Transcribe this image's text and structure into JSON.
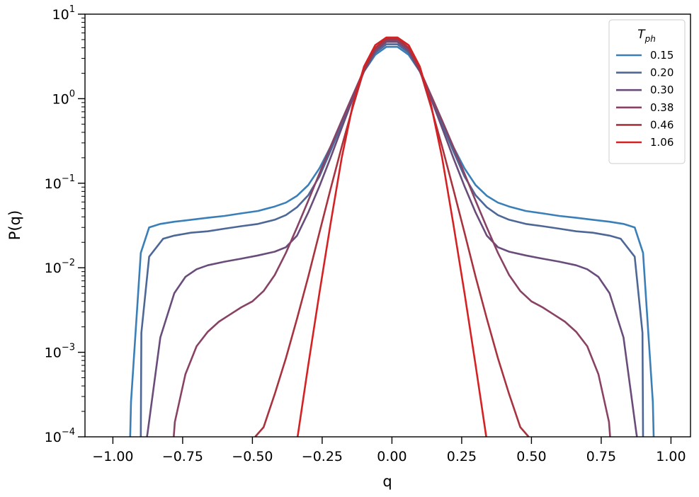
{
  "chart_data": {
    "type": "line",
    "xlabel": "q",
    "ylabel": "P(q)",
    "xlim": [
      -1.1,
      1.07
    ],
    "ylim": [
      0.0001,
      10
    ],
    "yscale": "log",
    "grid": false,
    "legend_position": "top-right",
    "legend_title_main": "T",
    "legend_title_sub": "ph",
    "x_ticks": [
      -1.0,
      -0.75,
      -0.5,
      -0.25,
      0.0,
      0.25,
      0.5,
      0.75,
      1.0
    ],
    "x_tick_labels": [
      "−1.00",
      "−0.75",
      "−0.50",
      "−0.25",
      "0.00",
      "0.25",
      "0.50",
      "0.75",
      "1.00"
    ],
    "y_ticks": [
      {
        "value": 10,
        "base": "10",
        "exp": "1"
      },
      {
        "value": 1,
        "base": "10",
        "exp": "0"
      },
      {
        "value": 0.1,
        "base": "10",
        "exp": "−1"
      },
      {
        "value": 0.01,
        "base": "10",
        "exp": "−2"
      },
      {
        "value": 0.001,
        "base": "10",
        "exp": "−3"
      },
      {
        "value": 0.0001,
        "base": "10",
        "exp": "−4"
      }
    ],
    "series": [
      {
        "name": "0.15",
        "color": "#3a7fb8",
        "x": [
          -0.938,
          -0.935,
          -0.9,
          -0.87,
          -0.83,
          -0.78,
          -0.72,
          -0.66,
          -0.6,
          -0.54,
          -0.48,
          -0.42,
          -0.38,
          -0.34,
          -0.3,
          -0.26,
          -0.22,
          -0.18,
          -0.14,
          -0.1,
          -0.06,
          -0.02,
          0.02,
          0.06,
          0.1,
          0.14,
          0.18,
          0.22,
          0.26,
          0.3,
          0.34,
          0.38,
          0.42,
          0.48,
          0.54,
          0.6,
          0.66,
          0.72,
          0.78,
          0.83,
          0.87,
          0.9,
          0.935,
          0.938
        ],
        "y": [
          0.0001,
          0.00026,
          0.015,
          0.03,
          0.033,
          0.035,
          0.037,
          0.039,
          0.041,
          0.044,
          0.047,
          0.053,
          0.059,
          0.071,
          0.095,
          0.15,
          0.27,
          0.55,
          1.1,
          2.1,
          3.3,
          4.1,
          4.1,
          3.3,
          2.1,
          1.1,
          0.55,
          0.27,
          0.15,
          0.095,
          0.071,
          0.059,
          0.053,
          0.047,
          0.044,
          0.041,
          0.039,
          0.037,
          0.035,
          0.033,
          0.03,
          0.015,
          0.00026,
          0.0001
        ]
      },
      {
        "name": "0.20",
        "color": "#4d6797",
        "x": [
          -0.9,
          -0.898,
          -0.87,
          -0.82,
          -0.78,
          -0.72,
          -0.66,
          -0.6,
          -0.54,
          -0.48,
          -0.42,
          -0.38,
          -0.34,
          -0.3,
          -0.26,
          -0.22,
          -0.18,
          -0.14,
          -0.1,
          -0.06,
          -0.02,
          0.02,
          0.06,
          0.1,
          0.14,
          0.18,
          0.22,
          0.26,
          0.3,
          0.34,
          0.38,
          0.42,
          0.48,
          0.54,
          0.6,
          0.66,
          0.72,
          0.78,
          0.82,
          0.87,
          0.898,
          0.9
        ],
        "y": [
          0.0001,
          0.0017,
          0.0135,
          0.022,
          0.024,
          0.026,
          0.027,
          0.029,
          0.031,
          0.033,
          0.037,
          0.042,
          0.052,
          0.072,
          0.12,
          0.24,
          0.5,
          1.05,
          2.1,
          3.5,
          4.4,
          4.4,
          3.5,
          2.1,
          1.05,
          0.5,
          0.24,
          0.12,
          0.072,
          0.052,
          0.042,
          0.037,
          0.033,
          0.031,
          0.029,
          0.027,
          0.026,
          0.024,
          0.022,
          0.0135,
          0.0017,
          0.0001
        ]
      },
      {
        "name": "0.30",
        "color": "#6a4c7b",
        "x": [
          -0.878,
          -0.876,
          -0.83,
          -0.78,
          -0.74,
          -0.7,
          -0.66,
          -0.6,
          -0.54,
          -0.48,
          -0.42,
          -0.38,
          -0.34,
          -0.3,
          -0.26,
          -0.22,
          -0.18,
          -0.14,
          -0.1,
          -0.06,
          -0.02,
          0.02,
          0.06,
          0.1,
          0.14,
          0.18,
          0.22,
          0.26,
          0.3,
          0.34,
          0.38,
          0.42,
          0.48,
          0.54,
          0.6,
          0.66,
          0.7,
          0.74,
          0.78,
          0.83,
          0.876,
          0.878
        ],
        "y": [
          0.0001,
          0.00011,
          0.0015,
          0.005,
          0.0078,
          0.0096,
          0.0107,
          0.0118,
          0.0128,
          0.014,
          0.0155,
          0.0175,
          0.024,
          0.045,
          0.092,
          0.2,
          0.45,
          1.0,
          2.1,
          3.7,
          4.7,
          4.7,
          3.7,
          2.1,
          1.0,
          0.45,
          0.2,
          0.092,
          0.045,
          0.024,
          0.0175,
          0.0155,
          0.014,
          0.0128,
          0.0118,
          0.0107,
          0.0096,
          0.0078,
          0.005,
          0.0015,
          0.00011,
          0.0001
        ]
      },
      {
        "name": "0.38",
        "color": "#894264",
        "x": [
          -0.782,
          -0.778,
          -0.74,
          -0.7,
          -0.66,
          -0.62,
          -0.58,
          -0.54,
          -0.5,
          -0.46,
          -0.42,
          -0.38,
          -0.34,
          -0.3,
          -0.26,
          -0.22,
          -0.18,
          -0.14,
          -0.1,
          -0.06,
          -0.02,
          0.02,
          0.06,
          0.1,
          0.14,
          0.18,
          0.22,
          0.26,
          0.3,
          0.34,
          0.38,
          0.42,
          0.46,
          0.5,
          0.54,
          0.58,
          0.62,
          0.66,
          0.7,
          0.74,
          0.778,
          0.782
        ],
        "y": [
          0.0001,
          0.00015,
          0.00055,
          0.00118,
          0.00175,
          0.0023,
          0.0028,
          0.0034,
          0.004,
          0.0053,
          0.0082,
          0.015,
          0.03,
          0.062,
          0.13,
          0.27,
          0.55,
          1.1,
          2.2,
          3.8,
          4.9,
          4.9,
          3.8,
          2.2,
          1.1,
          0.55,
          0.27,
          0.13,
          0.062,
          0.03,
          0.015,
          0.0082,
          0.0053,
          0.004,
          0.0034,
          0.0028,
          0.0023,
          0.00175,
          0.00118,
          0.00055,
          0.00015,
          0.0001
        ]
      },
      {
        "name": "0.46",
        "color": "#a8333f",
        "x": [
          -0.49,
          -0.46,
          -0.42,
          -0.38,
          -0.34,
          -0.3,
          -0.26,
          -0.22,
          -0.18,
          -0.14,
          -0.1,
          -0.06,
          -0.02,
          0.02,
          0.06,
          0.1,
          0.14,
          0.18,
          0.22,
          0.26,
          0.3,
          0.34,
          0.38,
          0.42,
          0.46,
          0.49
        ],
        "y": [
          0.0001,
          0.00013,
          0.00032,
          0.00085,
          0.0025,
          0.0078,
          0.026,
          0.085,
          0.27,
          0.8,
          2.2,
          4.0,
          5.1,
          5.1,
          4.0,
          2.2,
          0.8,
          0.27,
          0.085,
          0.026,
          0.0078,
          0.0025,
          0.00085,
          0.00032,
          0.00013,
          0.0001
        ]
      },
      {
        "name": "1.06",
        "color": "#d62123",
        "x": [
          -0.338,
          -0.3,
          -0.26,
          -0.22,
          -0.18,
          -0.14,
          -0.1,
          -0.06,
          -0.02,
          0.02,
          0.06,
          0.1,
          0.14,
          0.18,
          0.22,
          0.26,
          0.3,
          0.338
        ],
        "y": [
          0.0001,
          0.0007,
          0.005,
          0.033,
          0.2,
          0.85,
          2.4,
          4.3,
          5.3,
          5.3,
          4.3,
          2.4,
          0.85,
          0.2,
          0.033,
          0.005,
          0.0007,
          0.0001
        ]
      }
    ]
  }
}
